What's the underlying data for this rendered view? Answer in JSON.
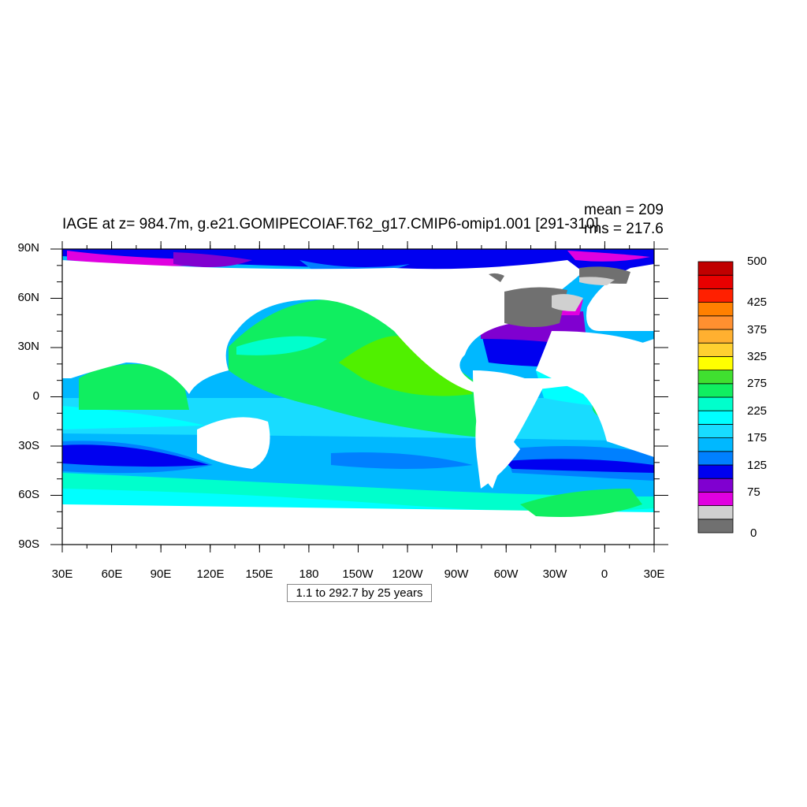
{
  "title": "IAGE at z= 984.7m, g.e21.GOMIPECOIAF.T62_g17.CMIP6-omip1.001 [291-310]",
  "stats": {
    "mean": "mean = 209",
    "rms": "rms = 217.6"
  },
  "lat_labels": [
    "90N",
    "60N",
    "30N",
    "0",
    "30S",
    "60S",
    "90S"
  ],
  "lon_labels": [
    "30E",
    "60E",
    "90E",
    "120E",
    "150E",
    "180",
    "150W",
    "120W",
    "90W",
    "60W",
    "30W",
    "0",
    "30E"
  ],
  "time_range": "1.1 to 292.7 by 25 years",
  "colorbar": {
    "labels": [
      "500",
      "425",
      "375",
      "325",
      "275",
      "225",
      "175",
      "125",
      "75",
      "0"
    ],
    "colors": [
      "#707070",
      "#d0d0d0",
      "#e000e0",
      "#8000d0",
      "#0000f0",
      "#0080ff",
      "#00b8ff",
      "#18dcff",
      "#00ffff",
      "#00ffcc",
      "#10ee60",
      "#40e030",
      "#ffff00",
      "#ffd030",
      "#ffb030",
      "#ff9030",
      "#ff8000",
      "#ff2000",
      "#e80000",
      "#c00000"
    ]
  },
  "colors": {
    "land": "#ffffff",
    "gray_dark": "#707070",
    "gray_light": "#d0d0d0",
    "magenta": "#e000e0",
    "purple": "#8000d0",
    "blue": "#0000f0",
    "blue_mid": "#0080ff",
    "sky": "#00b8ff",
    "light_sky": "#18dcff",
    "cyan": "#00ffff",
    "aqua": "#00ffcc",
    "green": "#10ee60",
    "yellow_green": "#50f000"
  }
}
